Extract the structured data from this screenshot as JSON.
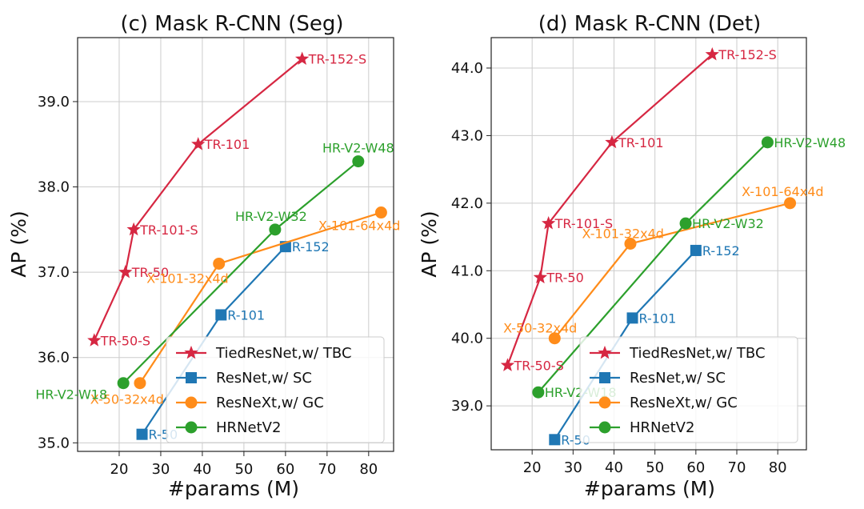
{
  "chart_data": [
    {
      "type": "line",
      "title": "(c) Mask R-CNN (Seg)",
      "xlabel": "#params (M)",
      "ylabel": "AP (%)",
      "xlim": [
        10,
        86
      ],
      "ylim": [
        34.9,
        39.75
      ],
      "xticks": [
        20,
        30,
        40,
        50,
        60,
        70,
        80
      ],
      "yticks": [
        35.0,
        36.0,
        37.0,
        38.0,
        39.0
      ],
      "grid": true,
      "legend": "lower-right",
      "series": [
        {
          "name": "TiedResNet,w/ TBC",
          "color": "#d62742",
          "marker": "star",
          "points": [
            {
              "x": 14.0,
              "y": 36.2,
              "label": "TR-50-S"
            },
            {
              "x": 21.5,
              "y": 37.0,
              "label": "TR-50"
            },
            {
              "x": 23.5,
              "y": 37.5,
              "label": "TR-101-S"
            },
            {
              "x": 39.0,
              "y": 38.5,
              "label": "TR-101"
            },
            {
              "x": 64.0,
              "y": 39.5,
              "label": "TR-152-S"
            }
          ]
        },
        {
          "name": "ResNet,w/ SC",
          "color": "#1f77b4",
          "marker": "square",
          "points": [
            {
              "x": 25.5,
              "y": 35.1,
              "label": "R-50"
            },
            {
              "x": 44.5,
              "y": 36.5,
              "label": "R-101"
            },
            {
              "x": 60.0,
              "y": 37.3,
              "label": "R-152"
            }
          ]
        },
        {
          "name": "ResNeXt,w/ GC",
          "color": "#ff8c1a",
          "marker": "circle",
          "points": [
            {
              "x": 25.0,
              "y": 35.7,
              "label": "X-50-32x4d"
            },
            {
              "x": 44.0,
              "y": 37.1,
              "label": "X-101-32x4d"
            },
            {
              "x": 83.0,
              "y": 37.7,
              "label": "X-101-64x4d"
            }
          ]
        },
        {
          "name": "HRNetV2",
          "color": "#2ca02c",
          "marker": "circle",
          "points": [
            {
              "x": 21.0,
              "y": 35.7,
              "label": "HR-V2-W18"
            },
            {
              "x": 57.5,
              "y": 37.5,
              "label": "HR-V2-W32"
            },
            {
              "x": 77.5,
              "y": 38.3,
              "label": "HR-V2-W48"
            }
          ]
        }
      ]
    },
    {
      "type": "line",
      "title": "(d) Mask R-CNN (Det)",
      "xlabel": "#params (M)",
      "ylabel": "AP (%)",
      "xlim": [
        10,
        87
      ],
      "ylim": [
        38.35,
        44.45
      ],
      "xticks": [
        20,
        30,
        40,
        50,
        60,
        70,
        80
      ],
      "yticks": [
        39.0,
        40.0,
        41.0,
        42.0,
        43.0,
        44.0
      ],
      "grid": true,
      "legend": "lower-right",
      "series": [
        {
          "name": "TiedResNet,w/ TBC",
          "color": "#d62742",
          "marker": "star",
          "points": [
            {
              "x": 14.0,
              "y": 39.6,
              "label": "TR-50-S"
            },
            {
              "x": 22.0,
              "y": 40.9,
              "label": "TR-50"
            },
            {
              "x": 24.0,
              "y": 41.7,
              "label": "TR-101-S"
            },
            {
              "x": 39.5,
              "y": 42.9,
              "label": "TR-101"
            },
            {
              "x": 64.0,
              "y": 44.2,
              "label": "TR-152-S"
            }
          ]
        },
        {
          "name": "ResNet,w/ SC",
          "color": "#1f77b4",
          "marker": "square",
          "points": [
            {
              "x": 25.5,
              "y": 38.5,
              "label": "R-50"
            },
            {
              "x": 44.5,
              "y": 40.3,
              "label": "R-101"
            },
            {
              "x": 60.0,
              "y": 41.3,
              "label": "R-152"
            }
          ]
        },
        {
          "name": "ResNeXt,w/ GC",
          "color": "#ff8c1a",
          "marker": "circle",
          "points": [
            {
              "x": 25.5,
              "y": 40.0,
              "label": "X-50-32x4d"
            },
            {
              "x": 44.0,
              "y": 41.4,
              "label": "X-101-32x4d"
            },
            {
              "x": 83.0,
              "y": 42.0,
              "label": "X-101-64x4d"
            }
          ]
        },
        {
          "name": "HRNetV2",
          "color": "#2ca02c",
          "marker": "circle",
          "points": [
            {
              "x": 21.5,
              "y": 39.2,
              "label": "HR-V2-W18"
            },
            {
              "x": 57.5,
              "y": 41.7,
              "label": "HR-V2-W32"
            },
            {
              "x": 77.5,
              "y": 42.9,
              "label": "HR-V2-W48"
            }
          ]
        }
      ]
    }
  ]
}
